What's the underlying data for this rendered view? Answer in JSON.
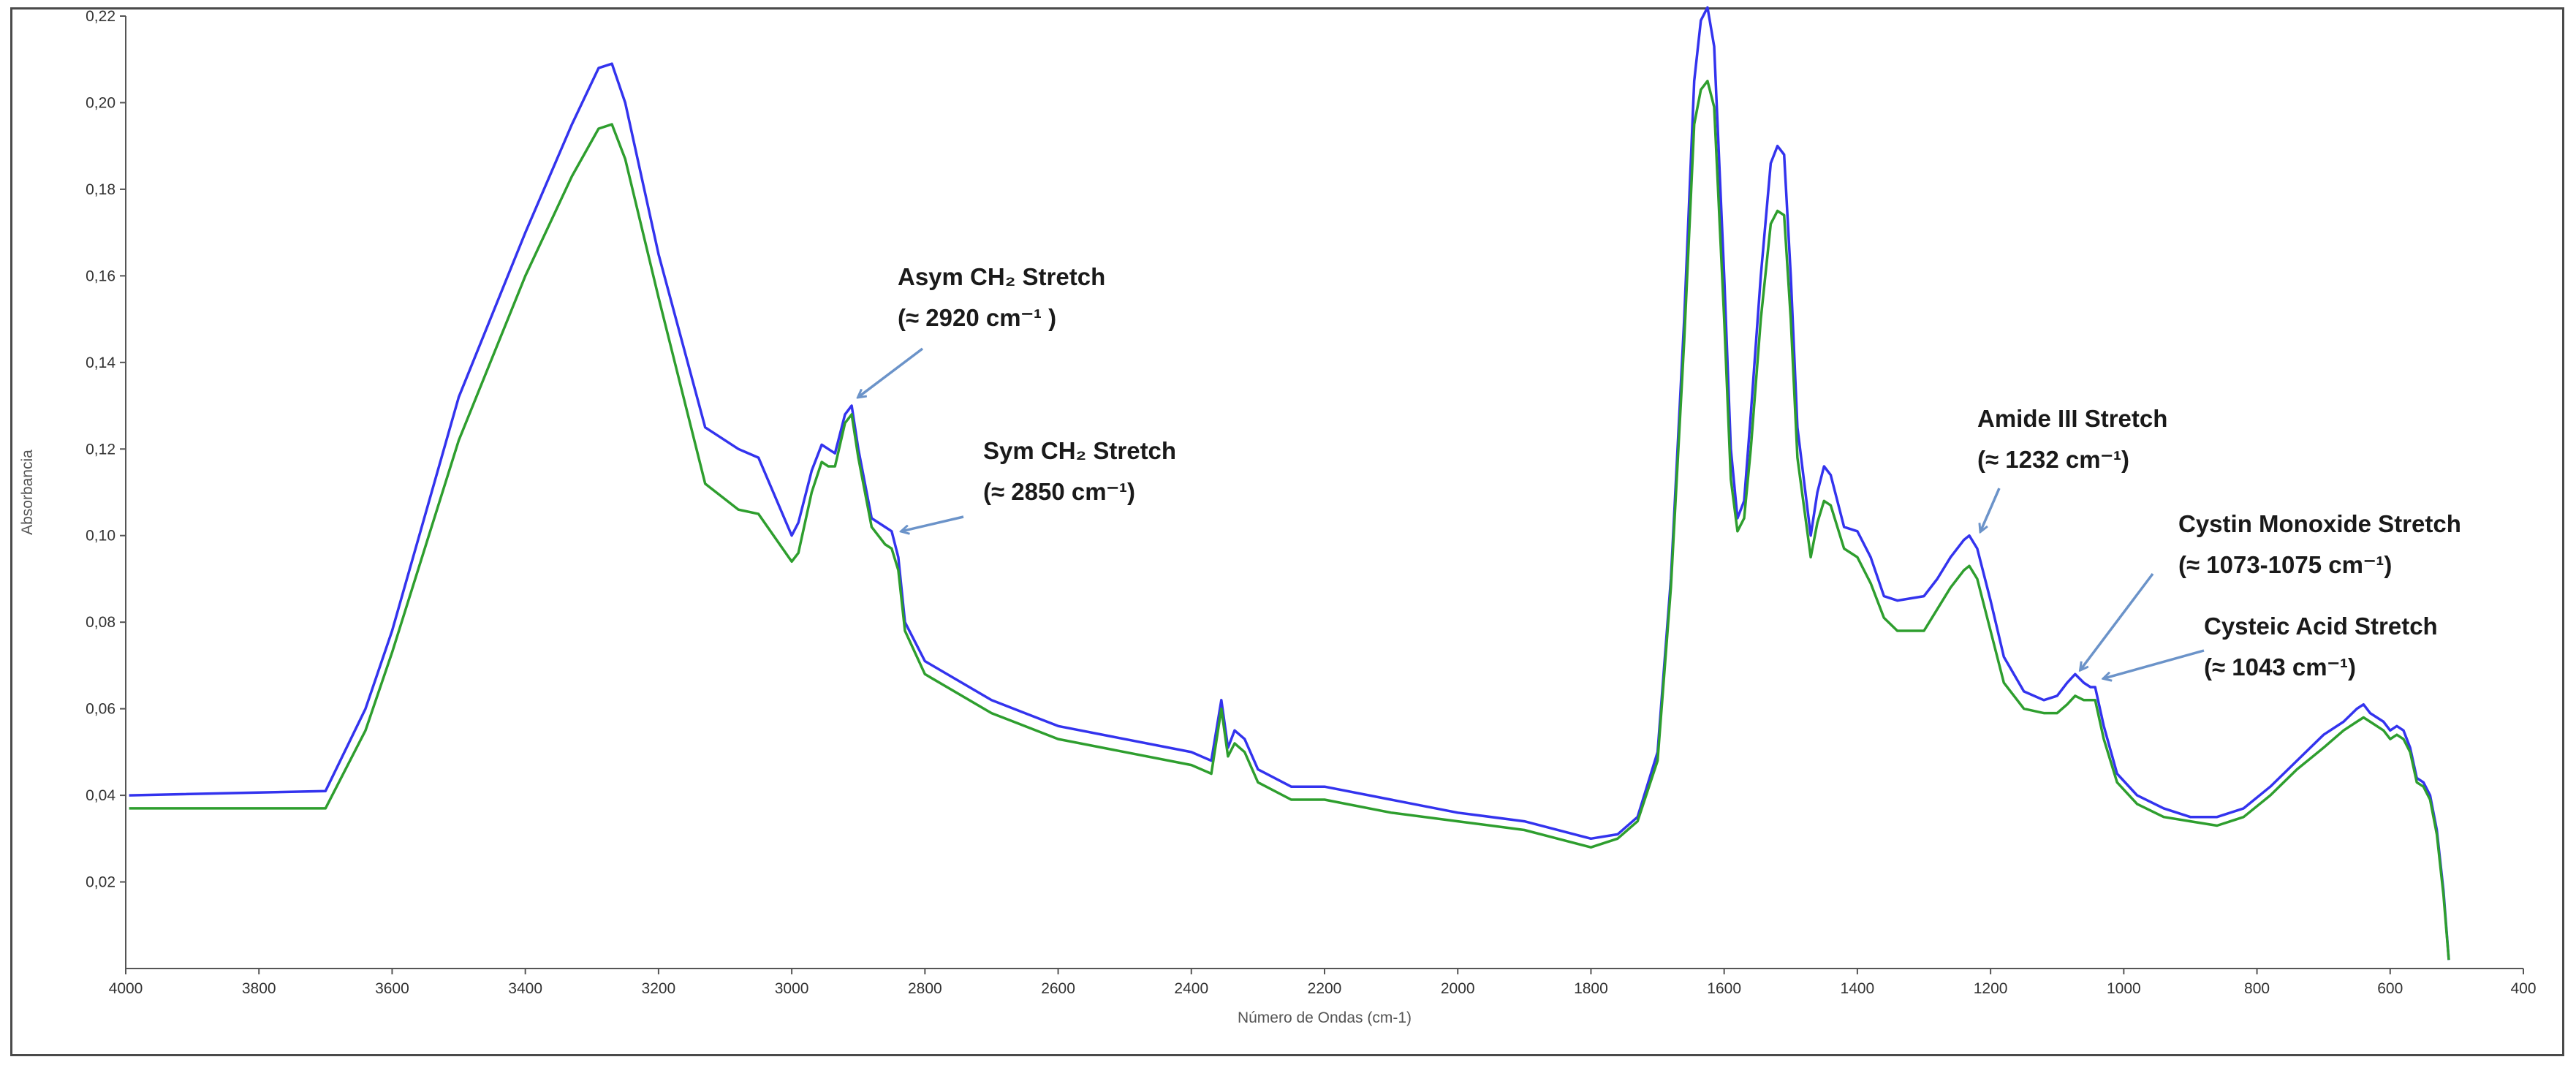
{
  "chart_data": {
    "type": "line",
    "title": "",
    "xlabel": "Número de Ondas (cm-1)",
    "ylabel": "Absorbancia",
    "xlim": [
      4000,
      400
    ],
    "ylim": [
      0.0,
      0.22
    ],
    "x_ticks": [
      4000,
      3800,
      3600,
      3400,
      3200,
      3000,
      2800,
      2600,
      2400,
      2200,
      2000,
      1800,
      1600,
      1400,
      1200,
      1000,
      800,
      600,
      400
    ],
    "x_tick_labels": [
      "4000",
      "3800",
      "3600",
      "3400",
      "3200",
      "3000",
      "2800",
      "2600",
      "2400",
      "2200",
      "2000",
      "1800",
      "1600",
      "1400",
      "1200",
      "1000",
      "800",
      "600",
      "400"
    ],
    "y_ticks": [
      0.02,
      0.04,
      0.06,
      0.08,
      0.1,
      0.12,
      0.14,
      0.16,
      0.18,
      0.2,
      0.22
    ],
    "y_tick_labels": [
      "0,02",
      "0,04",
      "0,06",
      "0,08",
      "0,10",
      "0,12",
      "0,14",
      "0,16",
      "0,18",
      "0,20",
      "0,22"
    ],
    "grid": false,
    "series": [
      {
        "color": "#3333ee",
        "x": [
          3995,
          3700,
          3640,
          3600,
          3500,
          3400,
          3330,
          3290,
          3270,
          3250,
          3200,
          3130,
          3080,
          3050,
          3000,
          2990,
          2970,
          2955,
          2945,
          2935,
          2920,
          2910,
          2900,
          2880,
          2860,
          2850,
          2840,
          2830,
          2800,
          2700,
          2600,
          2400,
          2370,
          2355,
          2345,
          2335,
          2320,
          2300,
          2250,
          2200,
          2100,
          2000,
          1900,
          1800,
          1760,
          1730,
          1700,
          1680,
          1660,
          1645,
          1635,
          1625,
          1615,
          1600,
          1590,
          1580,
          1570,
          1560,
          1545,
          1530,
          1520,
          1510,
          1500,
          1490,
          1470,
          1460,
          1450,
          1440,
          1420,
          1400,
          1380,
          1360,
          1340,
          1300,
          1280,
          1260,
          1240,
          1232,
          1220,
          1200,
          1180,
          1150,
          1120,
          1100,
          1085,
          1073,
          1060,
          1050,
          1043,
          1030,
          1010,
          980,
          940,
          900,
          860,
          820,
          780,
          740,
          700,
          670,
          650,
          640,
          630,
          610,
          600,
          590,
          580,
          570,
          560,
          550,
          540,
          530,
          520,
          512
        ],
        "y": [
          0.04,
          0.041,
          0.06,
          0.078,
          0.132,
          0.17,
          0.195,
          0.208,
          0.209,
          0.2,
          0.165,
          0.125,
          0.12,
          0.118,
          0.1,
          0.103,
          0.115,
          0.121,
          0.12,
          0.119,
          0.128,
          0.13,
          0.12,
          0.104,
          0.102,
          0.101,
          0.095,
          0.08,
          0.071,
          0.062,
          0.056,
          0.05,
          0.048,
          0.062,
          0.051,
          0.055,
          0.053,
          0.046,
          0.042,
          0.042,
          0.039,
          0.036,
          0.034,
          0.03,
          0.031,
          0.035,
          0.05,
          0.09,
          0.15,
          0.205,
          0.219,
          0.222,
          0.213,
          0.16,
          0.12,
          0.104,
          0.108,
          0.128,
          0.16,
          0.186,
          0.19,
          0.188,
          0.16,
          0.125,
          0.1,
          0.11,
          0.116,
          0.114,
          0.102,
          0.101,
          0.095,
          0.086,
          0.085,
          0.086,
          0.09,
          0.095,
          0.099,
          0.1,
          0.097,
          0.085,
          0.072,
          0.064,
          0.062,
          0.063,
          0.066,
          0.068,
          0.066,
          0.065,
          0.065,
          0.056,
          0.045,
          0.04,
          0.037,
          0.035,
          0.035,
          0.037,
          0.042,
          0.048,
          0.054,
          0.057,
          0.06,
          0.061,
          0.059,
          0.057,
          0.055,
          0.056,
          0.055,
          0.051,
          0.044,
          0.043,
          0.04,
          0.032,
          0.018,
          0.002
        ]
      },
      {
        "color": "#2e9e2e",
        "x": [
          3995,
          3700,
          3640,
          3600,
          3500,
          3400,
          3330,
          3290,
          3270,
          3250,
          3200,
          3130,
          3080,
          3050,
          3000,
          2990,
          2970,
          2955,
          2945,
          2935,
          2920,
          2910,
          2900,
          2880,
          2860,
          2850,
          2840,
          2830,
          2800,
          2700,
          2600,
          2400,
          2370,
          2355,
          2345,
          2335,
          2320,
          2300,
          2250,
          2200,
          2100,
          2000,
          1900,
          1800,
          1760,
          1730,
          1700,
          1680,
          1660,
          1645,
          1635,
          1625,
          1615,
          1600,
          1590,
          1580,
          1570,
          1560,
          1545,
          1530,
          1520,
          1510,
          1500,
          1490,
          1470,
          1460,
          1450,
          1440,
          1420,
          1400,
          1380,
          1360,
          1340,
          1300,
          1280,
          1260,
          1240,
          1232,
          1220,
          1200,
          1180,
          1150,
          1120,
          1100,
          1085,
          1073,
          1060,
          1050,
          1043,
          1030,
          1010,
          980,
          940,
          900,
          860,
          820,
          780,
          740,
          700,
          670,
          650,
          640,
          630,
          610,
          600,
          590,
          580,
          570,
          560,
          550,
          540,
          530,
          520,
          512
        ],
        "y": [
          0.037,
          0.037,
          0.055,
          0.073,
          0.122,
          0.16,
          0.183,
          0.194,
          0.195,
          0.187,
          0.155,
          0.112,
          0.106,
          0.105,
          0.094,
          0.096,
          0.11,
          0.117,
          0.116,
          0.116,
          0.126,
          0.128,
          0.118,
          0.102,
          0.098,
          0.097,
          0.092,
          0.078,
          0.068,
          0.059,
          0.053,
          0.047,
          0.045,
          0.06,
          0.049,
          0.052,
          0.05,
          0.043,
          0.039,
          0.039,
          0.036,
          0.034,
          0.032,
          0.028,
          0.03,
          0.034,
          0.048,
          0.088,
          0.145,
          0.195,
          0.203,
          0.205,
          0.199,
          0.15,
          0.113,
          0.101,
          0.104,
          0.12,
          0.15,
          0.172,
          0.175,
          0.174,
          0.15,
          0.118,
          0.095,
          0.103,
          0.108,
          0.107,
          0.097,
          0.095,
          0.089,
          0.081,
          0.078,
          0.078,
          0.083,
          0.088,
          0.092,
          0.093,
          0.09,
          0.078,
          0.066,
          0.06,
          0.059,
          0.059,
          0.061,
          0.063,
          0.062,
          0.062,
          0.062,
          0.053,
          0.043,
          0.038,
          0.035,
          0.034,
          0.033,
          0.035,
          0.04,
          0.046,
          0.051,
          0.055,
          0.057,
          0.058,
          0.057,
          0.055,
          0.053,
          0.054,
          0.053,
          0.05,
          0.043,
          0.042,
          0.039,
          0.031,
          0.017,
          0.002
        ]
      }
    ],
    "annotations": [
      {
        "lines": [
          "Asym CH₂ Stretch",
          "(≈ 2920 cm⁻¹ )"
        ],
        "arrow_to": {
          "x": 2900,
          "y": 0.132
        }
      },
      {
        "lines": [
          "Sym CH₂ Stretch",
          "(≈ 2850 cm⁻¹)"
        ],
        "arrow_to": {
          "x": 2835,
          "y": 0.101
        }
      },
      {
        "lines": [
          "Amide III Stretch",
          "(≈ 1232 cm⁻¹)"
        ],
        "arrow_to": {
          "x": 1215,
          "y": 0.101
        }
      },
      {
        "lines": [
          "Cystin Monoxide  Stretch",
          "(≈ 1073-1075 cm⁻¹)"
        ],
        "arrow_to": {
          "x": 1065,
          "y": 0.069
        }
      },
      {
        "lines": [
          "Cysteic Acid Stretch",
          "(≈ 1043 cm⁻¹)"
        ],
        "arrow_to": {
          "x": 1030,
          "y": 0.067
        }
      }
    ]
  }
}
